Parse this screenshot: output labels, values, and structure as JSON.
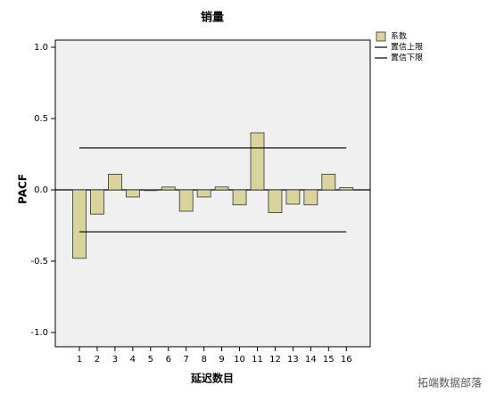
{
  "chart_data": {
    "type": "bar",
    "title": "销量",
    "x_label": "延迟数目",
    "y_label": "PACF",
    "categories": [
      "1",
      "2",
      "3",
      "4",
      "5",
      "6",
      "7",
      "8",
      "9",
      "10",
      "11",
      "12",
      "13",
      "14",
      "15",
      "16"
    ],
    "series": [
      {
        "name": "系数",
        "type": "bar",
        "color": "#d8d49c",
        "values": [
          -0.48,
          -0.17,
          0.11,
          -0.05,
          -0.005,
          0.02,
          -0.15,
          -0.05,
          0.02,
          -0.105,
          0.4,
          -0.16,
          -0.1,
          -0.105,
          0.11,
          0.015
        ]
      },
      {
        "name": "置信上限",
        "type": "line",
        "color": "#000000",
        "values": [
          0.294,
          0.294,
          0.294,
          0.294,
          0.294,
          0.294,
          0.294,
          0.294,
          0.294,
          0.294,
          0.294,
          0.294,
          0.294,
          0.294,
          0.294,
          0.294
        ]
      },
      {
        "name": "置信下限",
        "type": "line",
        "color": "#000000",
        "values": [
          -0.294,
          -0.294,
          -0.294,
          -0.294,
          -0.294,
          -0.294,
          -0.294,
          -0.294,
          -0.294,
          -0.294,
          -0.294,
          -0.294,
          -0.294,
          -0.294,
          -0.294,
          -0.294
        ]
      }
    ],
    "ylim": [
      -1.1,
      1.05
    ],
    "yticks": [
      {
        "value": 1,
        "label": "1.0"
      },
      {
        "value": 0.5,
        "label": "0.5"
      },
      {
        "value": 0,
        "label": "0.0"
      },
      {
        "value": -0.5,
        "label": "-0.5"
      },
      {
        "value": -1,
        "label": "-1.0"
      }
    ],
    "legend": "right",
    "watermark": "拓端数据部落"
  }
}
